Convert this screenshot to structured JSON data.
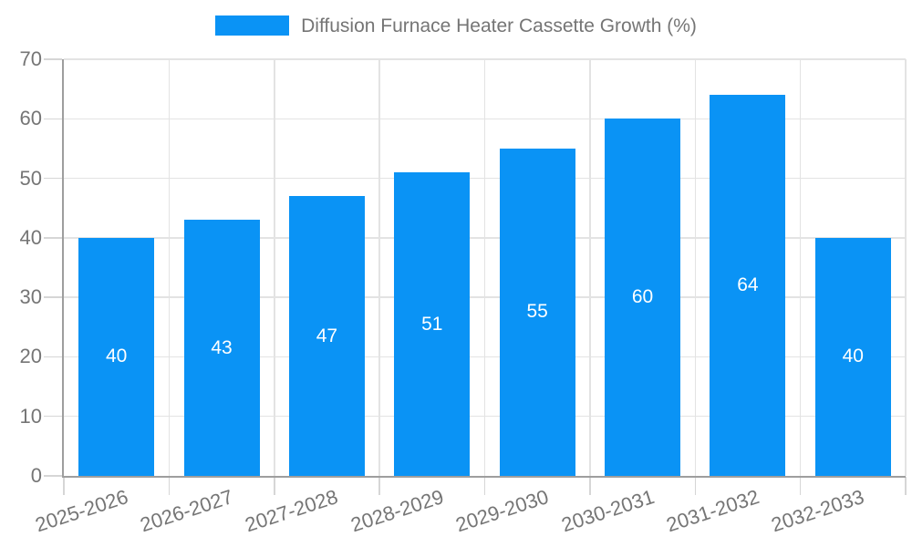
{
  "chart_data": {
    "type": "bar",
    "title": "Diffusion Furnace Heater Cassette Growth (%)",
    "categories": [
      "2025-2026",
      "2026-2027",
      "2027-2028",
      "2028-2029",
      "2029-2030",
      "2030-2031",
      "2031-2032",
      "2032-2033"
    ],
    "values": [
      40,
      43,
      47,
      51,
      55,
      60,
      64,
      40
    ],
    "yticks": [
      0,
      10,
      20,
      30,
      40,
      50,
      60,
      70
    ],
    "ylim": [
      0,
      70
    ],
    "xlabel": "",
    "ylabel": "",
    "legend_position": "top",
    "grid": "on",
    "x_label_rotation_deg": -18,
    "bar_color": "#0a93f5",
    "value_label_color": "#ffffff",
    "axis_text_color": "#757575"
  }
}
